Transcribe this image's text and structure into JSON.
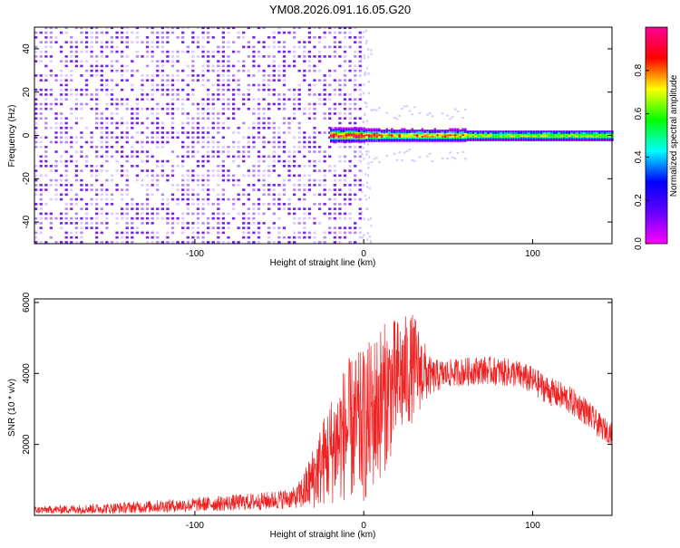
{
  "title": "YM08.2026.091.16.05.G20",
  "chart_data": [
    {
      "type": "heatmap",
      "xlabel": "Height of straight line (km)",
      "ylabel": "Frequency (Hz)",
      "xlim": [
        -195,
        147
      ],
      "ylim": [
        -50,
        50
      ],
      "x_ticks": [
        -100,
        0,
        100
      ],
      "y_ticks": [
        -40,
        -20,
        0,
        20,
        40
      ],
      "noise_region_x": [
        -195,
        0
      ],
      "signal_band_center_hz": 0,
      "colorbar": {
        "label": "Normalized spectral amplitude",
        "range": [
          0.0,
          1.0
        ],
        "ticks": [
          0.0,
          0.2,
          0.4,
          0.6,
          0.8
        ],
        "colormap": [
          "#ff00ff",
          "#6600ff",
          "#0000ff",
          "#00ffff",
          "#00ff00",
          "#ffff00",
          "#ff0000",
          "#ff0099"
        ]
      }
    },
    {
      "type": "line",
      "xlabel": "Height of straight line (km)",
      "ylabel": "SNR (10 * v/v)",
      "xlim": [
        -195,
        147
      ],
      "ylim": [
        0,
        6100
      ],
      "x_ticks": [
        -100,
        0,
        100
      ],
      "y_ticks": [
        2000,
        4000,
        6000
      ],
      "series": [
        {
          "color": "#ee2222",
          "x": [
            -195,
            -150,
            -100,
            -60,
            -40,
            -35,
            -20,
            -10,
            0,
            10,
            20,
            30,
            40,
            50,
            70,
            90,
            100,
            110,
            120,
            130,
            140,
            147
          ],
          "y": [
            150,
            200,
            300,
            400,
            500,
            700,
            1800,
            2400,
            2500,
            3200,
            3800,
            4200,
            3900,
            4000,
            4100,
            4000,
            3800,
            3500,
            3300,
            3000,
            2500,
            2300
          ],
          "band": [
            100,
            150,
            200,
            250,
            300,
            600,
            1500,
            2000,
            2200,
            2200,
            1800,
            1500,
            500,
            400,
            400,
            400,
            400,
            400,
            400,
            400,
            350,
            300
          ]
        }
      ]
    }
  ]
}
